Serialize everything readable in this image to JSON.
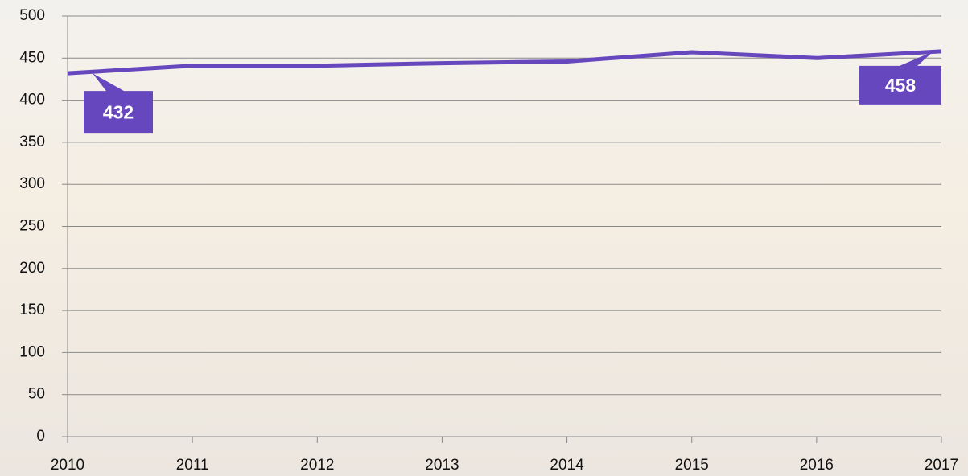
{
  "chart_data": {
    "type": "line",
    "x": [
      2010,
      2011,
      2012,
      2013,
      2014,
      2015,
      2016,
      2017
    ],
    "series": [
      {
        "color": "#6647bd",
        "values": [
          432,
          441,
          441,
          444,
          446,
          457,
          450,
          458
        ]
      }
    ],
    "xlim": [
      2010,
      2017
    ],
    "xticks": [
      2010,
      2011,
      2012,
      2013,
      2014,
      2015,
      2016,
      2017
    ],
    "ylim": [
      0,
      500
    ],
    "yticks": [
      0,
      50,
      100,
      150,
      200,
      250,
      300,
      350,
      400,
      450,
      500
    ],
    "grid": true,
    "labeled_points": [
      0,
      7
    ]
  }
}
